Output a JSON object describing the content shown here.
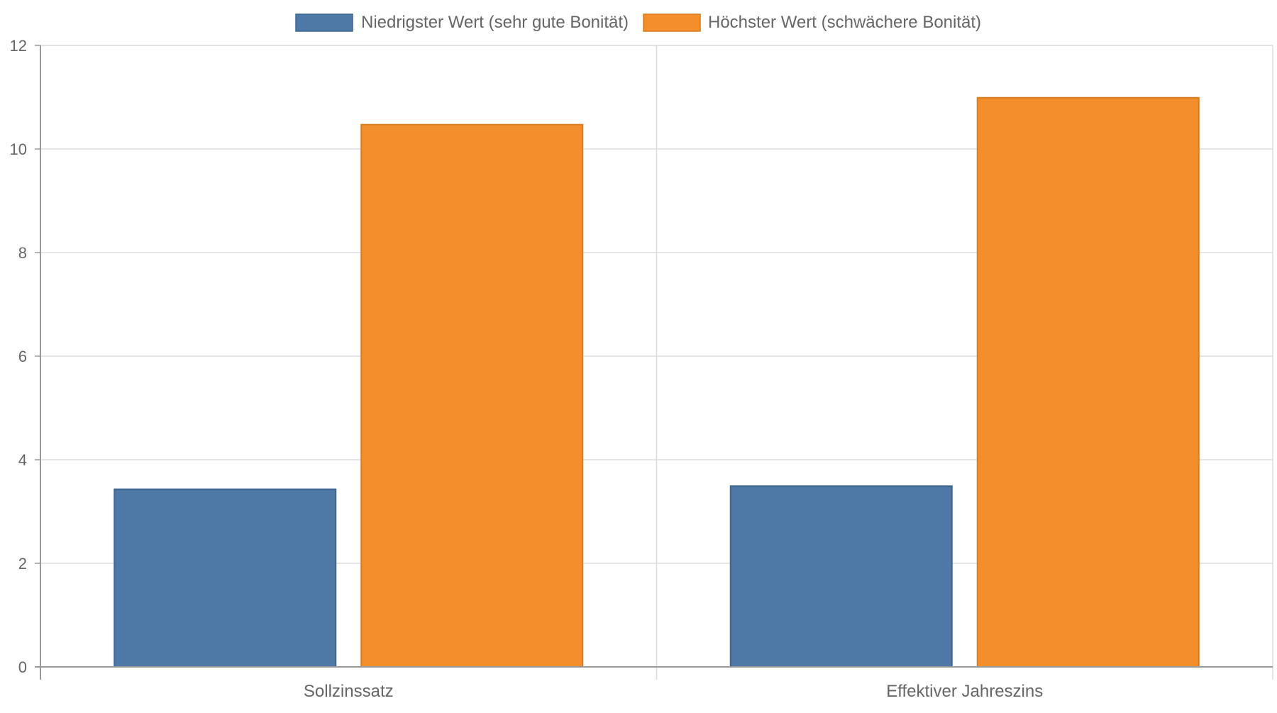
{
  "chart_data": {
    "type": "bar",
    "title": "",
    "xlabel": "",
    "ylabel": "",
    "categories": [
      "Sollzinssatz",
      "Effektiver Jahreszins"
    ],
    "series": [
      {
        "name": "Niedrigster Wert (sehr gute Bonität)",
        "color": "#4e79a7",
        "values": [
          3.43,
          3.49
        ]
      },
      {
        "name": "Höchster Wert (schwächere Bonität)",
        "color": "#f28e2b",
        "values": [
          10.47,
          10.99
        ]
      }
    ],
    "ylim": [
      0,
      12
    ],
    "yticks": [
      "0",
      "2",
      "4",
      "6",
      "8",
      "10",
      "12"
    ],
    "grid": true,
    "legend_position": "top-center"
  }
}
